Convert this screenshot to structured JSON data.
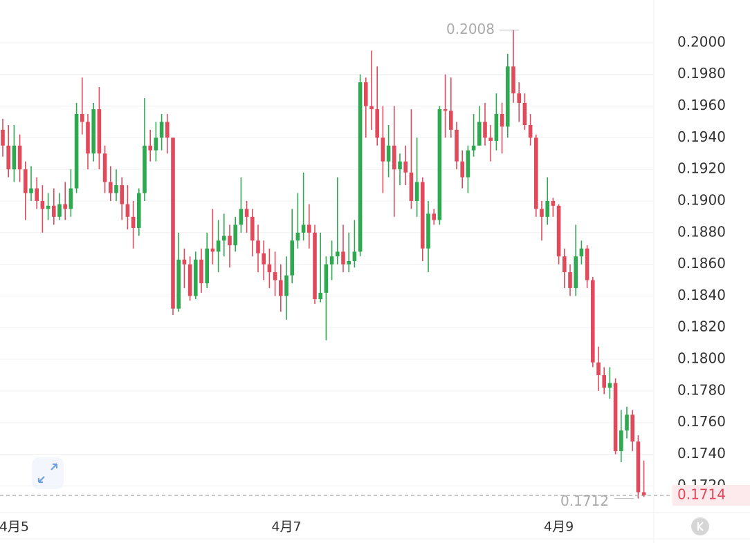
{
  "chart_data": {
    "type": "candlestick",
    "categories": [
      null,
      null,
      "4月5",
      null,
      null,
      null,
      null,
      null,
      null,
      null,
      null,
      null,
      null,
      null,
      null,
      null,
      null,
      null,
      null,
      null,
      null,
      null,
      null,
      null,
      null,
      null,
      null,
      null,
      null,
      null,
      null,
      null,
      null,
      null,
      null,
      null,
      null,
      null,
      null,
      null,
      null,
      null,
      null,
      null,
      null,
      null,
      null,
      null,
      null,
      null,
      "4月7",
      null,
      null,
      null,
      null,
      null,
      null,
      null,
      null,
      null,
      null,
      null,
      null,
      null,
      null,
      null,
      null,
      null,
      null,
      null,
      null,
      null,
      null,
      null,
      null,
      null,
      null,
      null,
      null,
      null,
      null,
      null,
      null,
      null,
      null,
      null,
      null,
      null,
      null,
      null,
      null,
      null,
      null,
      null,
      null,
      null,
      null,
      null,
      "4月9",
      null,
      null,
      null,
      null,
      null,
      null,
      null,
      null,
      null,
      null,
      null,
      null,
      null,
      null,
      null
    ],
    "open": [
      0.1945,
      0.1935,
      0.192,
      0.1935,
      0.192,
      0.1905,
      0.1908,
      0.19,
      0.1895,
      0.1897,
      0.189,
      0.1898,
      0.1895,
      0.1908,
      0.1955,
      0.195,
      0.193,
      0.1958,
      0.193,
      0.1912,
      0.1905,
      0.191,
      0.1898,
      0.189,
      0.1883,
      0.1905,
      0.1935,
      0.1932,
      0.194,
      0.195,
      0.194,
      0.1832,
      0.1863,
      0.186,
      0.184,
      0.1863,
      0.1848,
      0.187,
      0.1868,
      0.1875,
      0.1878,
      0.1872,
      0.1885,
      0.1895,
      0.189,
      0.1875,
      0.1867,
      0.186,
      0.1855,
      0.185,
      0.184,
      0.1853,
      0.1875,
      0.188,
      0.1885,
      0.188,
      0.1838,
      0.1842,
      0.186,
      0.1865,
      0.1868,
      0.186,
      0.1862,
      0.1868,
      0.1975,
      0.196,
      0.1958,
      0.194,
      0.1925,
      0.1935,
      0.192,
      0.1925,
      0.1918,
      0.19,
      0.1912,
      0.187,
      0.1892,
      0.1888,
      0.1958,
      0.1957,
      0.1945,
      0.1925,
      0.1915,
      0.1932,
      0.1935,
      0.195,
      0.194,
      0.1938,
      0.1955,
      0.1947,
      0.1985,
      0.1968,
      0.1962,
      0.1948,
      0.194,
      0.1895,
      0.189,
      0.19,
      0.1897,
      0.1865,
      0.1855,
      0.1845,
      0.1865,
      0.187,
      0.185,
      0.1798,
      0.179,
      0.1782,
      0.1785,
      0.1742,
      0.1755,
      0.1765,
      0.1748,
      0.1716
    ],
    "high": [
      0.1952,
      0.1948,
      0.1948,
      0.1942,
      0.1925,
      0.1922,
      0.1915,
      0.191,
      0.1905,
      0.1908,
      0.1905,
      0.1912,
      0.192,
      0.1962,
      0.1978,
      0.1955,
      0.1962,
      0.1972,
      0.1935,
      0.1922,
      0.192,
      0.1915,
      0.191,
      0.19,
      0.1908,
      0.1965,
      0.1945,
      0.195,
      0.1955,
      0.1955,
      0.194,
      0.188,
      0.187,
      0.1865,
      0.1868,
      0.187,
      0.188,
      0.1895,
      0.1888,
      0.1892,
      0.1885,
      0.189,
      0.1915,
      0.19,
      0.1895,
      0.1885,
      0.1875,
      0.187,
      0.1868,
      0.186,
      0.1865,
      0.1895,
      0.1905,
      0.1918,
      0.1898,
      0.1885,
      0.188,
      0.1865,
      0.1875,
      0.1915,
      0.1885,
      0.188,
      0.1888,
      0.198,
      0.1978,
      0.1995,
      0.1985,
      0.196,
      0.1948,
      0.196,
      0.193,
      0.1935,
      0.1958,
      0.194,
      0.1915,
      0.19,
      0.1895,
      0.196,
      0.198,
      0.1978,
      0.195,
      0.1932,
      0.1935,
      0.1955,
      0.196,
      0.1962,
      0.1948,
      0.1968,
      0.1962,
      0.1993,
      0.2008,
      0.1975,
      0.1968,
      0.1955,
      0.1942,
      0.19,
      0.1915,
      0.1902,
      0.1898,
      0.187,
      0.186,
      0.1885,
      0.1875,
      0.1872,
      0.1852,
      0.1808,
      0.1795,
      0.1795,
      0.1788,
      0.1768,
      0.177,
      0.1768,
      0.1752,
      0.1736
    ],
    "low": [
      0.1928,
      0.1915,
      0.1912,
      0.1912,
      0.1888,
      0.19,
      0.1895,
      0.188,
      0.1888,
      0.1885,
      0.1888,
      0.1888,
      0.189,
      0.1905,
      0.1942,
      0.192,
      0.1925,
      0.192,
      0.1905,
      0.19,
      0.19,
      0.1888,
      0.1882,
      0.187,
      0.1878,
      0.19,
      0.1925,
      0.1925,
      0.1932,
      0.193,
      0.1828,
      0.183,
      0.1845,
      0.1837,
      0.1838,
      0.1842,
      0.1845,
      0.186,
      0.1855,
      0.1865,
      0.1858,
      0.1868,
      0.188,
      0.188,
      0.1865,
      0.1855,
      0.185,
      0.1845,
      0.184,
      0.183,
      0.1825,
      0.1848,
      0.187,
      0.1875,
      0.187,
      0.1835,
      0.1836,
      0.1812,
      0.185,
      0.186,
      0.1855,
      0.1855,
      0.1858,
      0.1865,
      0.194,
      0.1945,
      0.1935,
      0.1905,
      0.1915,
      0.189,
      0.191,
      0.191,
      0.1895,
      0.189,
      0.1862,
      0.1855,
      0.1885,
      0.1885,
      0.194,
      0.194,
      0.192,
      0.1908,
      0.1905,
      0.1928,
      0.1935,
      0.1935,
      0.1925,
      0.1932,
      0.193,
      0.194,
      0.1962,
      0.195,
      0.1945,
      0.1935,
      0.189,
      0.1875,
      0.1885,
      0.189,
      0.186,
      0.1845,
      0.184,
      0.184,
      0.186,
      0.1845,
      0.1795,
      0.178,
      0.1778,
      0.1775,
      0.174,
      0.1735,
      0.175,
      0.1742,
      0.1712,
      0.1713
    ],
    "close": [
      0.1935,
      0.192,
      0.1935,
      0.192,
      0.1905,
      0.1908,
      0.19,
      0.1895,
      0.1897,
      0.189,
      0.1898,
      0.1895,
      0.1908,
      0.1955,
      0.195,
      0.193,
      0.1958,
      0.193,
      0.1912,
      0.1905,
      0.191,
      0.1898,
      0.189,
      0.1883,
      0.1905,
      0.1935,
      0.1932,
      0.194,
      0.195,
      0.194,
      0.1832,
      0.1863,
      0.186,
      0.184,
      0.1863,
      0.1848,
      0.187,
      0.1868,
      0.1875,
      0.1878,
      0.1872,
      0.1885,
      0.1895,
      0.189,
      0.1875,
      0.1867,
      0.186,
      0.1855,
      0.185,
      0.184,
      0.1853,
      0.1875,
      0.188,
      0.1885,
      0.188,
      0.1838,
      0.1842,
      0.186,
      0.1865,
      0.1868,
      0.186,
      0.1862,
      0.1868,
      0.1975,
      0.196,
      0.1958,
      0.194,
      0.1925,
      0.1935,
      0.192,
      0.1925,
      0.1918,
      0.19,
      0.1912,
      0.187,
      0.1892,
      0.1888,
      0.1958,
      0.1957,
      0.1945,
      0.1925,
      0.1915,
      0.1932,
      0.1935,
      0.195,
      0.194,
      0.1938,
      0.1955,
      0.1947,
      0.1985,
      0.1968,
      0.1962,
      0.1948,
      0.194,
      0.1895,
      0.189,
      0.19,
      0.1897,
      0.1865,
      0.1855,
      0.1845,
      0.1865,
      0.187,
      0.185,
      0.1798,
      0.179,
      0.1782,
      0.1785,
      0.1742,
      0.1755,
      0.1765,
      0.1748,
      0.1716,
      0.1714
    ],
    "colors": {
      "up": "#2ea94f",
      "down": "#e14a5b"
    },
    "ylim": [
      0.1704,
      0.2027
    ],
    "yticks": [
      {
        "value": 0.172,
        "label": "0.1720"
      },
      {
        "value": 0.174,
        "label": "0.1740"
      },
      {
        "value": 0.176,
        "label": "0.1760"
      },
      {
        "value": 0.178,
        "label": "0.1780"
      },
      {
        "value": 0.18,
        "label": "0.1800"
      },
      {
        "value": 0.182,
        "label": "0.1820"
      },
      {
        "value": 0.184,
        "label": "0.1840"
      },
      {
        "value": 0.186,
        "label": "0.1860"
      },
      {
        "value": 0.188,
        "label": "0.1880"
      },
      {
        "value": 0.19,
        "label": "0.1900"
      },
      {
        "value": 0.192,
        "label": "0.1920"
      },
      {
        "value": 0.194,
        "label": "0.1940"
      },
      {
        "value": 0.196,
        "label": "0.1960"
      },
      {
        "value": 0.198,
        "label": "0.1980"
      },
      {
        "value": 0.2,
        "label": "0.2000"
      }
    ],
    "grid": true,
    "high_annotation": 0.2008,
    "low_annotation": 0.1712,
    "last_price": 0.1714
  }
}
